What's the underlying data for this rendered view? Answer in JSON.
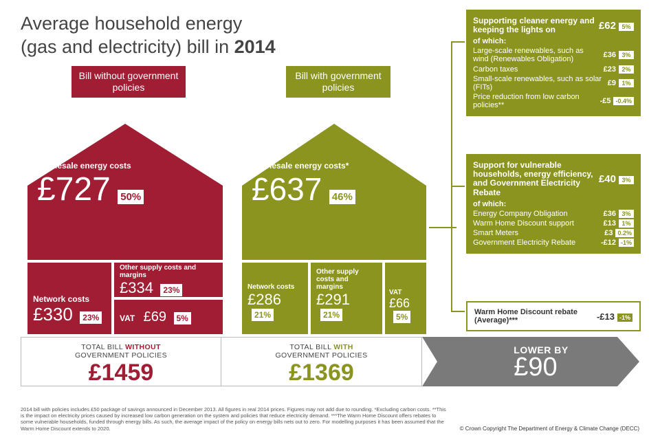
{
  "title_line1": "Average household energy",
  "title_line2_a": "(gas and electricity) bill in ",
  "title_line2_b": "2014",
  "colors": {
    "red": "#a11d33",
    "olive": "#8a941f",
    "grey": "#7a7a7a"
  },
  "house_without": {
    "sign": "Bill without government policies",
    "wholesale": {
      "label": "Wholesale energy costs",
      "value": "£727",
      "pct": "50%"
    },
    "network": {
      "label": "Network costs",
      "value": "£330",
      "pct": "23%"
    },
    "other": {
      "label": "Other supply costs and margins",
      "value": "£334",
      "pct": "23%"
    },
    "vat": {
      "label": "VAT",
      "value": "£69",
      "pct": "5%"
    }
  },
  "house_with": {
    "sign": "Bill with government policies",
    "wholesale": {
      "label": "Wholesale energy costs*",
      "value": "£637",
      "pct": "46%"
    },
    "network": {
      "label": "Network costs",
      "value": "£286",
      "pct": "21%"
    },
    "other": {
      "label": "Other supply costs and margins",
      "value": "£291",
      "pct": "21%"
    },
    "vat": {
      "label": "VAT",
      "value": "£66",
      "pct": "5%"
    }
  },
  "panel1": {
    "title": "Supporting cleaner energy and keeping the lights on",
    "title_val": "£62",
    "title_pct": "5%",
    "sub": "of which:",
    "rows": [
      {
        "l": "Large-scale renewables, such as wind (Renewables Obligation)",
        "v": "£36",
        "p": "3%"
      },
      {
        "l": "Carbon taxes",
        "v": "£23",
        "p": "2%"
      },
      {
        "l": "Small-scale renewables, such as solar (FITs)",
        "v": "£9",
        "p": "1%"
      },
      {
        "l": "Price reduction from low carbon policies**",
        "v": "-£5",
        "p": "-0.4%"
      }
    ]
  },
  "panel2": {
    "title": "Support for vulnerable households, energy efficiency, and Government Electricity Rebate",
    "title_val": "£40",
    "title_pct": "3%",
    "sub": "of which:",
    "rows": [
      {
        "l": "Energy Company Obligation",
        "v": "£36",
        "p": "3%"
      },
      {
        "l": "Warm Home Discount support",
        "v": "£13",
        "p": "1%"
      },
      {
        "l": "Smart Meters",
        "v": "£3",
        "p": "0.2%"
      },
      {
        "l": "Government Electricity Rebate",
        "v": "-£12",
        "p": "-1%"
      }
    ]
  },
  "panel3": {
    "label": "Warm Home Discount rebate (Average)***",
    "value": "-£13",
    "pct": "-1%"
  },
  "totals": {
    "without": {
      "hdr_a": "TOTAL BILL ",
      "hdr_b": "WITHOUT",
      "hdr_c": " GOVERNMENT POLICIES",
      "amount": "£1459"
    },
    "with": {
      "hdr_a": "TOTAL BILL ",
      "hdr_b": "WITH",
      "hdr_c": " GOVERNMENT POLICIES",
      "amount": "£1369"
    },
    "lower": {
      "label": "LOWER BY",
      "amount": "£90"
    }
  },
  "footnote": "2014 bill with policies includes £50 package of savings announced in December 2013. All figures in real 2014 prices. Figures may not add due to rounding.  *Excluding carbon costs. **This is the impact on electricity prices caused by increased low carbon generation on the system and policies that reduce electricity demand. ***The Warm Home Discount offers rebates to some vulnerable households, funded through energy bills.  As such, the average impact of the policy on energy bills nets out to zero. For modelling purposes it has been assumed that the Warm Home Discount extends to 2020.",
  "copyright": "© Crown Copyright    The Department of Energy & Climate Change (DECC)"
}
